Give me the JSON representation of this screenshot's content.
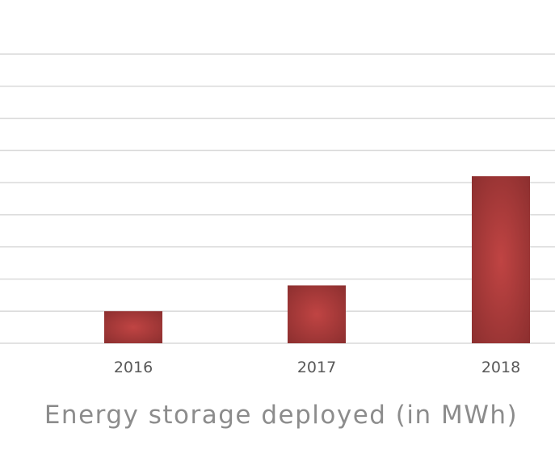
{
  "chart_data": {
    "type": "bar",
    "title": "Energy storage deployed (in MWh)",
    "xlabel": "",
    "ylabel": "",
    "categories": [
      "2016",
      "2017",
      "2018"
    ],
    "values": [
      1.0,
      1.8,
      5.2
    ],
    "ylim": [
      0,
      9
    ],
    "grid": true,
    "legend": "none",
    "colors": {
      "bar_center": "#c04443",
      "bar_edge": "#8c2f2f",
      "grid": "#d9d9d9",
      "tick_text": "#595959",
      "title_text": "#8c8c8c"
    }
  }
}
